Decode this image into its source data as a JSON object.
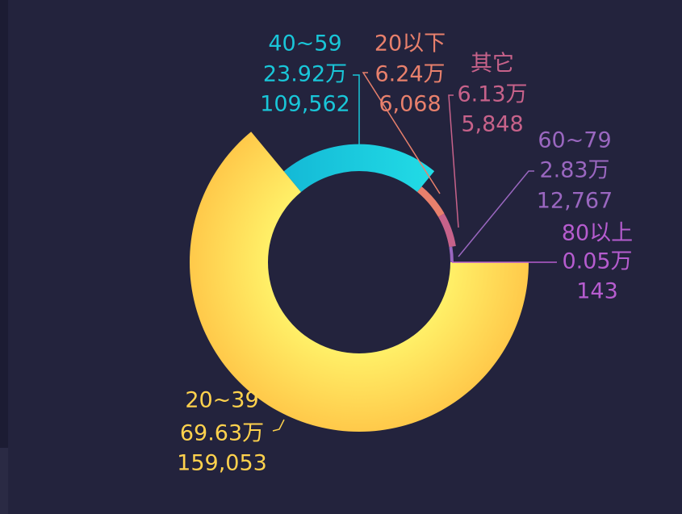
{
  "chart_data": {
    "type": "rose-donut",
    "categories": [
      "80以上",
      "60~79",
      "其它",
      "20以下",
      "40~59",
      "20~39"
    ],
    "values": [
      0.05,
      2.83,
      6.13,
      6.24,
      23.92,
      69.63
    ],
    "value_labels": [
      "0.05万",
      "2.83万",
      "6.13万",
      "6.24万",
      "23.92万",
      "69.63万"
    ],
    "counts": [
      143,
      12767,
      5848,
      6068,
      109562,
      159053
    ],
    "count_labels": [
      "143",
      "12,767",
      "5,848",
      "6,068",
      "109,562",
      "159,053"
    ],
    "colors": [
      "#b65ccf",
      "#9a67c0",
      "#c7628a",
      "#e8806c",
      "#19c6d8",
      "#ffd24d"
    ]
  }
}
